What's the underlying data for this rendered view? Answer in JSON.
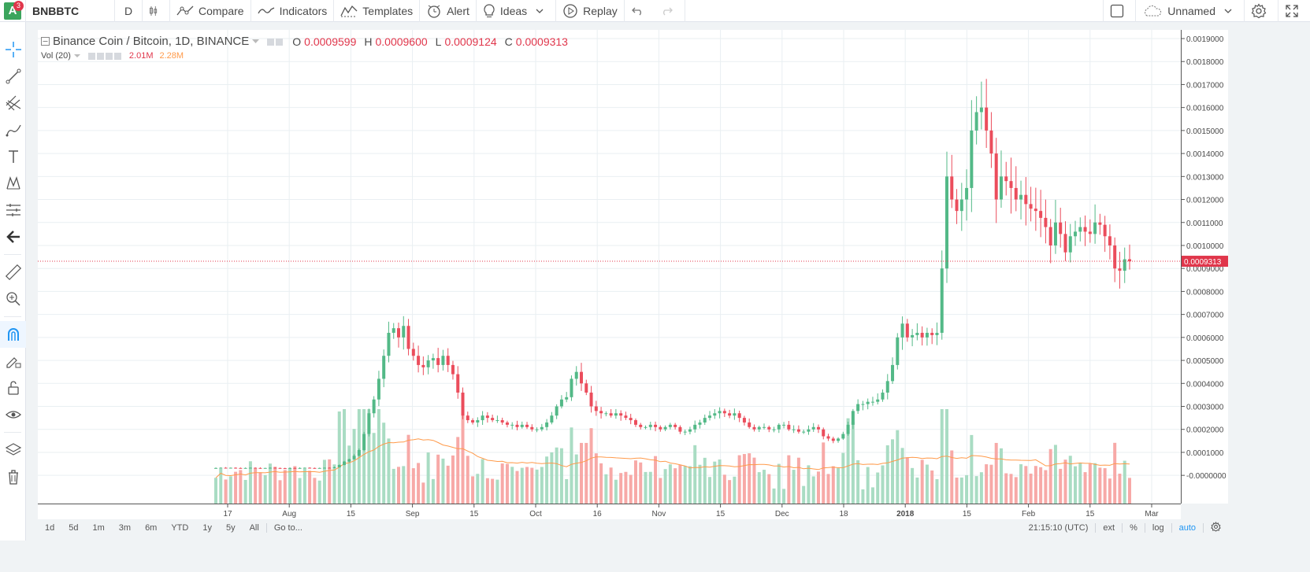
{
  "topbar": {
    "logo_letter": "A",
    "notification_count": "3",
    "symbol": "BNBBTC",
    "interval": "D",
    "compare": "Compare",
    "indicators": "Indicators",
    "templates": "Templates",
    "alert": "Alert",
    "ideas": "Ideas",
    "replay": "Replay",
    "layout_name": "Unnamed"
  },
  "legend": {
    "title": "Binance Coin / Bitcoin, 1D, BINANCE",
    "o_label": "O",
    "o_value": "0.0009599",
    "h_label": "H",
    "h_value": "0.0009600",
    "l_label": "L",
    "l_value": "0.0009124",
    "c_label": "C",
    "c_value": "0.0009313",
    "vol_label": "Vol (20)",
    "vol_value": "2.01M",
    "vol_ma_value": "2.28M"
  },
  "bottombar": {
    "ranges": [
      "1d",
      "5d",
      "1m",
      "3m",
      "6m",
      "YTD",
      "1y",
      "5y",
      "All"
    ],
    "goto": "Go to...",
    "clock": "21:15:10 (UTC)",
    "ext": "ext",
    "percent": "%",
    "log": "log",
    "auto": "auto"
  },
  "colors": {
    "up": "#53b987",
    "down": "#eb4d5c",
    "vol_up": "#a9dcc3",
    "vol_down": "#f7a9a7",
    "ma": "#ff9a4a",
    "grid": "#e9eff2",
    "price_line": "#e0364b"
  },
  "chart_data": {
    "type": "candlestick",
    "symbol": "Binance Coin / Bitcoin",
    "interval": "1D",
    "exchange": "BINANCE",
    "price_axis_ticks": [
      "0.0019000",
      "0.0018000",
      "0.0017000",
      "0.0016000",
      "0.0015000",
      "0.0014000",
      "0.0013000",
      "0.0012000",
      "0.0011000",
      "0.0010000",
      "0.0009000",
      "0.0008000",
      "0.0007000",
      "0.0006000",
      "0.0005000",
      "0.0004000",
      "0.0003000",
      "0.0002000",
      "0.0001000",
      "-0.0000000"
    ],
    "last_price": "0.0009313",
    "time_axis_ticks": [
      "17",
      "Aug",
      "15",
      "Sep",
      "15",
      "Oct",
      "16",
      "Nov",
      "15",
      "Dec",
      "18",
      "2018",
      "15",
      "Feb",
      "15",
      "Mar"
    ],
    "ylim": [
      -2e-05,
      0.0019
    ],
    "close_series": [
      3.2e-05,
      3.3e-05,
      3.2e-05,
      3.3e-05,
      3.2e-05,
      3.1e-05,
      3.2e-05,
      3.3e-05,
      3.2e-05,
      3.1e-05,
      3.2e-05,
      3.3e-05,
      3.2e-05,
      3.1e-05,
      3e-05,
      3.2e-05,
      3.1e-05,
      3.2e-05,
      3.3e-05,
      3.2e-05,
      3.1e-05,
      3.2e-05,
      3.3e-05,
      3.2e-05,
      3.5e-05,
      4.5e-05,
      6e-05,
      7e-05,
      8.5e-05,
      0.00011,
      0.00018,
      0.00027,
      0.00033,
      0.00042,
      0.00052,
      0.00062,
      0.00064,
      0.0006,
      0.00065,
      0.00055,
      0.00052,
      0.00048,
      0.00047,
      0.0005,
      0.00051,
      0.00048,
      0.00052,
      0.00048,
      0.00044,
      0.00036,
      0.00026,
      0.00024,
      0.00023,
      0.00024,
      0.00026,
      0.00025,
      0.00024,
      0.00024,
      0.00023,
      0.00022,
      0.00022,
      0.00021,
      0.00022,
      0.00021,
      0.0002,
      0.0002,
      0.00021,
      0.00023,
      0.00026,
      0.0003,
      0.00033,
      0.00034,
      0.00042,
      0.00045,
      0.0004,
      0.00036,
      0.0003,
      0.00028,
      0.00027,
      0.00027,
      0.00026,
      0.00027,
      0.00026,
      0.00025,
      0.00024,
      0.00022,
      0.00021,
      0.00021,
      0.00022,
      0.00021,
      0.0002,
      0.00021,
      0.00022,
      0.00021,
      0.00019,
      0.00019,
      0.0002,
      0.00022,
      0.00023,
      0.00025,
      0.00026,
      0.00027,
      0.00028,
      0.00027,
      0.00026,
      0.00027,
      0.00025,
      0.00023,
      0.00021,
      0.0002,
      0.00021,
      0.00021,
      0.0002,
      0.0002,
      0.00022,
      0.00022,
      0.0002,
      0.0002,
      0.00019,
      0.00019,
      0.0002,
      0.00021,
      0.0002,
      0.00017,
      0.00016,
      0.00015,
      0.00016,
      0.00018,
      0.00022,
      0.00028,
      0.00031,
      0.00031,
      0.00032,
      0.00032,
      0.00033,
      0.00036,
      0.00041,
      0.00048,
      0.0006,
      0.00066,
      0.0006,
      0.00061,
      0.00062,
      0.0006,
      0.00062,
      0.00061,
      0.00062,
      0.0009,
      0.0013,
      0.0012,
      0.00115,
      0.0012,
      0.00125,
      0.0015,
      0.00158,
      0.0016,
      0.0015,
      0.0014,
      0.0012,
      0.0013,
      0.00128,
      0.00125,
      0.0012,
      0.00122,
      0.00118,
      0.00116,
      0.00115,
      0.00112,
      0.00108,
      0.001,
      0.0011,
      0.00105,
      0.00097,
      0.00104,
      0.00106,
      0.00108,
      0.00106,
      0.00105,
      0.0011,
      0.00109,
      0.00104,
      0.001,
      0.0009,
      0.00089,
      0.00094,
      0.000931
    ]
  }
}
